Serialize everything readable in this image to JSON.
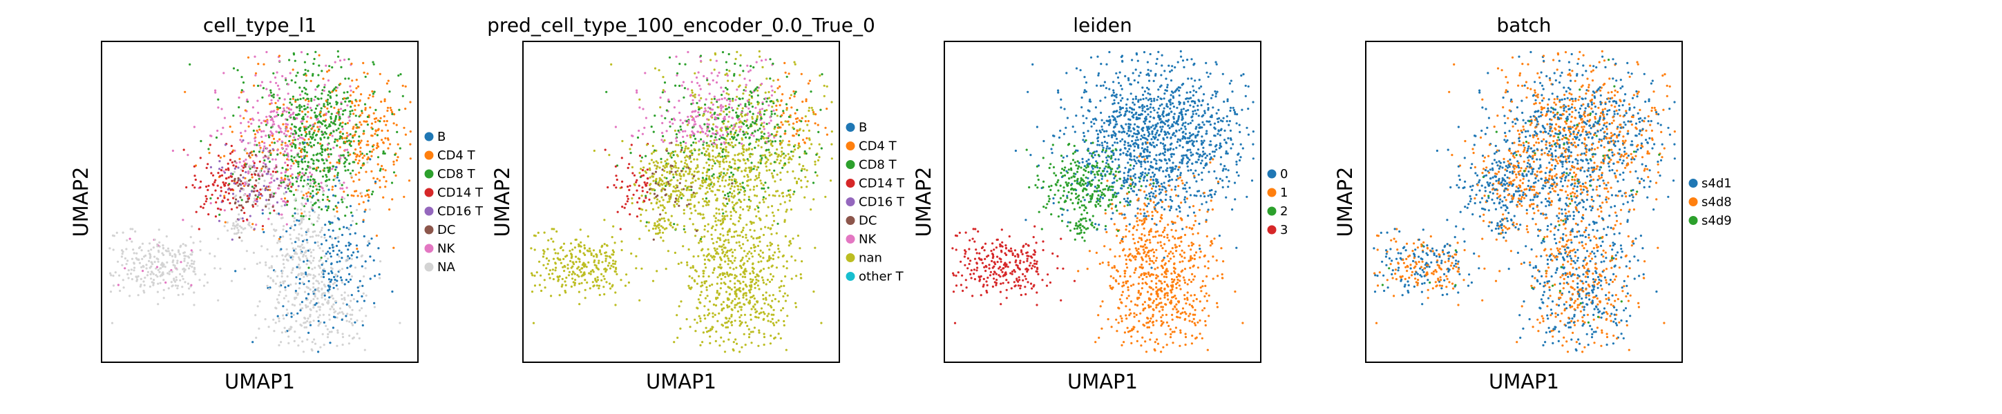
{
  "chart_data": [
    {
      "type": "scatter",
      "title": "cell_type_l1",
      "xlabel": "UMAP1",
      "ylabel": "UMAP2",
      "grid": false,
      "legend": "right",
      "series": [
        {
          "name": "B",
          "color": "#1f77b4"
        },
        {
          "name": "CD4 T",
          "color": "#ff7f0e"
        },
        {
          "name": "CD8 T",
          "color": "#2ca02c"
        },
        {
          "name": "CD14 T",
          "color": "#d62728"
        },
        {
          "name": "CD16 T",
          "color": "#9467bd"
        },
        {
          "name": "DC",
          "color": "#8c564b"
        },
        {
          "name": "NK",
          "color": "#e377c2"
        },
        {
          "name": "NA",
          "color": "#d3d3d3"
        }
      ]
    },
    {
      "type": "scatter",
      "title": "pred_cell_type_100_encoder_0.0_True_0",
      "xlabel": "UMAP1",
      "ylabel": "UMAP2",
      "grid": false,
      "legend": "right",
      "series": [
        {
          "name": "B",
          "color": "#1f77b4"
        },
        {
          "name": "CD4 T",
          "color": "#ff7f0e"
        },
        {
          "name": "CD8 T",
          "color": "#2ca02c"
        },
        {
          "name": "CD14 T",
          "color": "#d62728"
        },
        {
          "name": "CD16 T",
          "color": "#9467bd"
        },
        {
          "name": "DC",
          "color": "#8c564b"
        },
        {
          "name": "NK",
          "color": "#e377c2"
        },
        {
          "name": "nan",
          "color": "#bcbd22"
        },
        {
          "name": "other T",
          "color": "#17becf"
        }
      ]
    },
    {
      "type": "scatter",
      "title": "leiden",
      "xlabel": "UMAP1",
      "ylabel": "UMAP2",
      "grid": false,
      "legend": "right",
      "series": [
        {
          "name": "0",
          "color": "#1f77b4"
        },
        {
          "name": "1",
          "color": "#ff7f0e"
        },
        {
          "name": "2",
          "color": "#2ca02c"
        },
        {
          "name": "3",
          "color": "#d62728"
        }
      ]
    },
    {
      "type": "scatter",
      "title": "batch",
      "xlabel": "UMAP1",
      "ylabel": "UMAP2",
      "grid": false,
      "legend": "right",
      "series": [
        {
          "name": "s4d1",
          "color": "#1f77b4"
        },
        {
          "name": "s4d8",
          "color": "#ff7f0e"
        },
        {
          "name": "s4d9",
          "color": "#2ca02c"
        }
      ]
    }
  ]
}
